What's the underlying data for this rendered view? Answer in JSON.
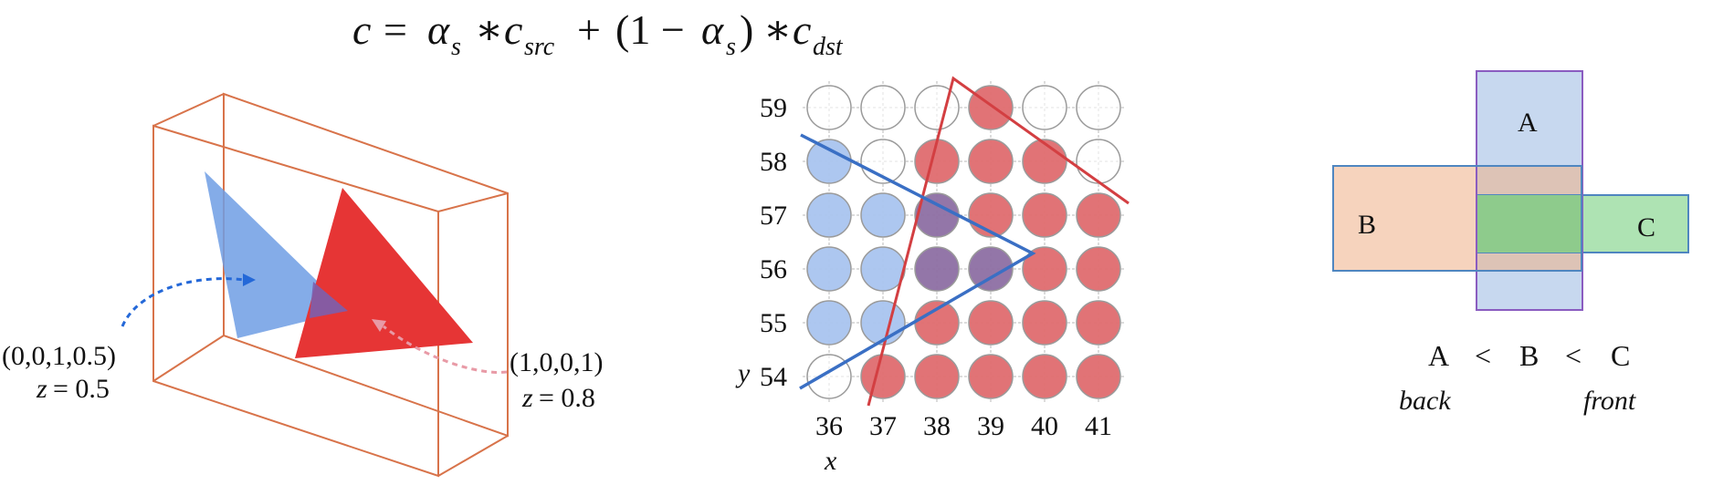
{
  "formula": {
    "c": "c",
    "equals": "=",
    "alpha": "α",
    "s": "s",
    "times": "∗",
    "c2": "c",
    "src": "src",
    "plus": "+",
    "open": "(1 −",
    "alpha2": "α",
    "s2": "s",
    "close": ")",
    "times2": "∗",
    "c3": "c",
    "dst": "dst"
  },
  "left_panel": {
    "blue_label": "(0,0,1,0.5)",
    "blue_z_var": "z",
    "blue_z_val": "= 0.5",
    "red_label": "(1,0,0,1)",
    "red_z_var": "z",
    "red_z_val": "= 0.8",
    "colors": {
      "box": "#d8734a",
      "blue_triangle": "#6f9ee4",
      "red_triangle": "#e63535",
      "overlap": "#7b5fae",
      "blue_arrow": "#2468d8",
      "red_arrow": "#e89aa6"
    }
  },
  "grid_panel": {
    "y_axis_var": "y",
    "x_axis_var": "x",
    "x_ticks": [
      "36",
      "37",
      "38",
      "39",
      "40",
      "41"
    ],
    "y_ticks": [
      "59",
      "58",
      "57",
      "56",
      "55",
      "54"
    ],
    "rows": [
      [
        "white",
        "white",
        "white",
        "red",
        "white",
        "white"
      ],
      [
        "blue",
        "white",
        "red",
        "red",
        "red",
        "white"
      ],
      [
        "blue",
        "blue",
        "purple",
        "red",
        "red",
        "red"
      ],
      [
        "blue",
        "blue",
        "purple",
        "purple",
        "red",
        "red"
      ],
      [
        "blue",
        "blue",
        "red",
        "red",
        "red",
        "red"
      ],
      [
        "white",
        "red",
        "red",
        "red",
        "red",
        "red"
      ]
    ],
    "colors": {
      "red": "#df6b6f",
      "blue": "#a9c4ef",
      "purple": "#8d6fa3",
      "white": "#ffffff",
      "red_line": "#d33f42",
      "blue_line": "#3a6fc4"
    }
  },
  "right_panel": {
    "label_a": "A",
    "label_b": "B",
    "label_c": "C",
    "order_a": "A",
    "lt1": "<",
    "order_b": "B",
    "lt2": "<",
    "order_c": "C",
    "back": "back",
    "front": "front",
    "colors": {
      "a_fill": "#c7d8ef",
      "a_stroke": "#8a5cc0",
      "b_fill": "#f6d3bd",
      "b_stroke": "#4f86c0",
      "c_fill": "#aee3b3",
      "c_stroke": "#4f86c0",
      "ab_overlap": "#ddc3b6",
      "ac_overlap": "#8ecb8c"
    }
  }
}
